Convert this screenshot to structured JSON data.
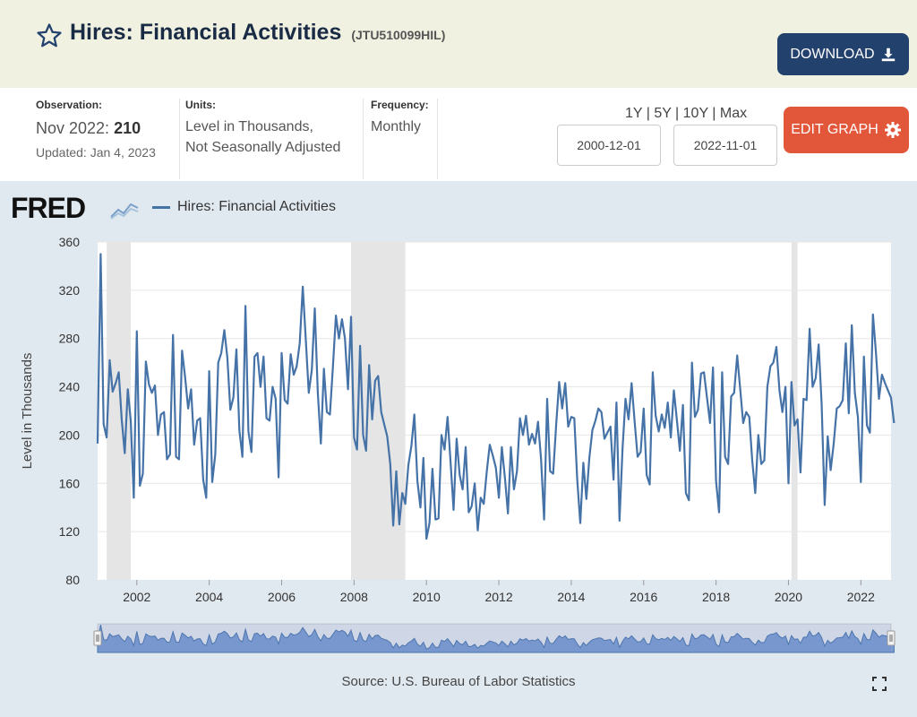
{
  "header": {
    "title": "Hires: Financial Activities",
    "series_id": "(JTU510099HIL)",
    "download_label": "DOWNLOAD",
    "edit_label": "EDIT GRAPH"
  },
  "meta": {
    "observation_label": "Observation:",
    "observation_date": "Nov 2022:",
    "observation_value": "210",
    "updated": "Updated: Jan 4, 2023",
    "units_label": "Units:",
    "units_line1": "Level in Thousands,",
    "units_line2": "Not Seasonally Adjusted",
    "frequency_label": "Frequency:",
    "frequency_value": "Monthly"
  },
  "range": {
    "links": [
      "1Y",
      "5Y",
      "10Y",
      "Max"
    ],
    "start_date": "2000-12-01",
    "end_date": "2022-11-01"
  },
  "chart": {
    "logo": "FRED",
    "source": "Source: U.S. Bureau of Labor Statistics"
  },
  "colors": {
    "line": "#4572a7",
    "recession": "#e5e5e5",
    "header_bg": "#f0f1e1",
    "download_bg": "#23416d",
    "edit_bg": "#e2573a",
    "chart_bg": "#e1e9f0"
  },
  "chart_data": {
    "type": "line",
    "title": "",
    "xlabel": "",
    "ylabel": "Level in Thousands",
    "series_name": "Hires: Financial Activities",
    "ylim": [
      80,
      360
    ],
    "xlim": [
      2000.917,
      2022.833
    ],
    "yticks": [
      80,
      120,
      160,
      200,
      240,
      280,
      320,
      360
    ],
    "xticks": [
      "2002",
      "2004",
      "2006",
      "2008",
      "2010",
      "2012",
      "2014",
      "2016",
      "2018",
      "2020",
      "2022"
    ],
    "recessions": [
      [
        2001.167,
        2001.833
      ],
      [
        2007.917,
        2009.417
      ],
      [
        2020.083,
        2020.25
      ]
    ],
    "grid": true,
    "start": "2000-12",
    "frequency": "monthly",
    "values": [
      193,
      350,
      209,
      198,
      262,
      236,
      243,
      252,
      213,
      185,
      238,
      212,
      148,
      286,
      158,
      168,
      261,
      242,
      235,
      241,
      200,
      217,
      219,
      180,
      184,
      283,
      182,
      180,
      270,
      248,
      222,
      238,
      192,
      212,
      214,
      163,
      148,
      253,
      161,
      184,
      260,
      268,
      287,
      264,
      221,
      231,
      271,
      204,
      182,
      307,
      203,
      186,
      265,
      268,
      240,
      265,
      214,
      212,
      240,
      230,
      165,
      268,
      229,
      226,
      267,
      250,
      257,
      276,
      323,
      280,
      235,
      254,
      305,
      235,
      193,
      255,
      219,
      217,
      257,
      299,
      280,
      296,
      280,
      238,
      298,
      198,
      188,
      274,
      200,
      187,
      258,
      213,
      245,
      249,
      219,
      209,
      199,
      176,
      125,
      170,
      126,
      152,
      143,
      175,
      191,
      217,
      162,
      140,
      181,
      114,
      127,
      172,
      130,
      131,
      200,
      188,
      215,
      177,
      138,
      197,
      167,
      155,
      190,
      136,
      141,
      160,
      121,
      148,
      143,
      170,
      192,
      183,
      173,
      148,
      190,
      165,
      135,
      190,
      155,
      170,
      214,
      200,
      216,
      192,
      201,
      193,
      211,
      180,
      130,
      230,
      170,
      168,
      209,
      244,
      222,
      243,
      207,
      215,
      214,
      163,
      127,
      177,
      147,
      181,
      204,
      212,
      222,
      219,
      197,
      202,
      207,
      163,
      227,
      129,
      189,
      230,
      213,
      243,
      211,
      182,
      186,
      222,
      167,
      159,
      252,
      216,
      203,
      217,
      206,
      227,
      198,
      237,
      213,
      187,
      225,
      152,
      146,
      260,
      215,
      221,
      251,
      252,
      231,
      210,
      256,
      162,
      136,
      252,
      182,
      176,
      232,
      235,
      266,
      238,
      210,
      219,
      215,
      179,
      152,
      200,
      176,
      179,
      240,
      257,
      260,
      273,
      237,
      219,
      240,
      160,
      244,
      208,
      213,
      169,
      230,
      229,
      288,
      240,
      247,
      275,
      226,
      142,
      199,
      171,
      193,
      222,
      224,
      229,
      276,
      218,
      291,
      235,
      215,
      161,
      265,
      208,
      202,
      300,
      268,
      230,
      250,
      243,
      237,
      231,
      210
    ]
  }
}
